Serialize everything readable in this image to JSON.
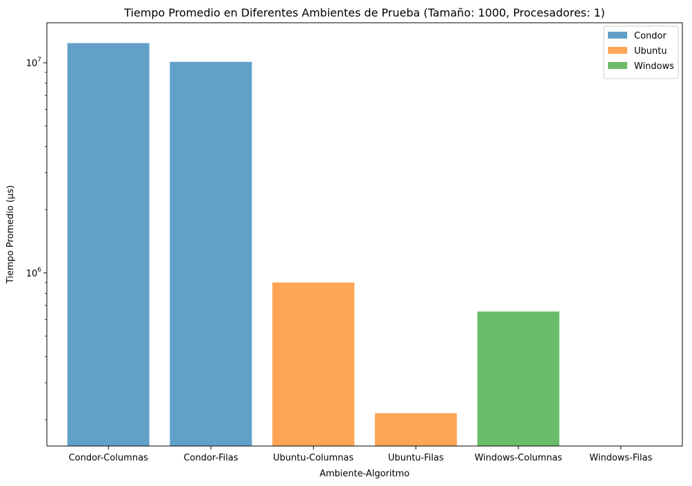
{
  "chart_data": {
    "type": "bar",
    "title": "Tiempo Promedio en Diferentes Ambientes de Prueba (Tamaño: 1000, Procesadores: 1)",
    "xlabel": "Ambiente-Algoritmo",
    "ylabel": "Tiempo Promedio (μs)",
    "yscale": "log",
    "ylim": [
      150000,
      15500000
    ],
    "yticks": [
      {
        "value": 1000000,
        "base": "10",
        "exp": "6"
      },
      {
        "value": 10000000,
        "base": "10",
        "exp": "7"
      }
    ],
    "categories": [
      "Condor-Columnas",
      "Condor-Filas",
      "Ubuntu-Columnas",
      "Ubuntu-Filas",
      "Windows-Columnas",
      "Windows-Filas"
    ],
    "values": [
      12400000,
      10100000,
      900000,
      215000,
      655000,
      145000
    ],
    "bar_series": [
      "Condor",
      "Condor",
      "Ubuntu",
      "Ubuntu",
      "Windows",
      "Windows"
    ],
    "series": [
      {
        "name": "Condor",
        "color": "#1f77b4"
      },
      {
        "name": "Ubuntu",
        "color": "#ff7f0e"
      },
      {
        "name": "Windows",
        "color": "#2ca02c"
      }
    ],
    "bar_alpha": 0.7,
    "legend_position": "top-right",
    "grid": false
  }
}
